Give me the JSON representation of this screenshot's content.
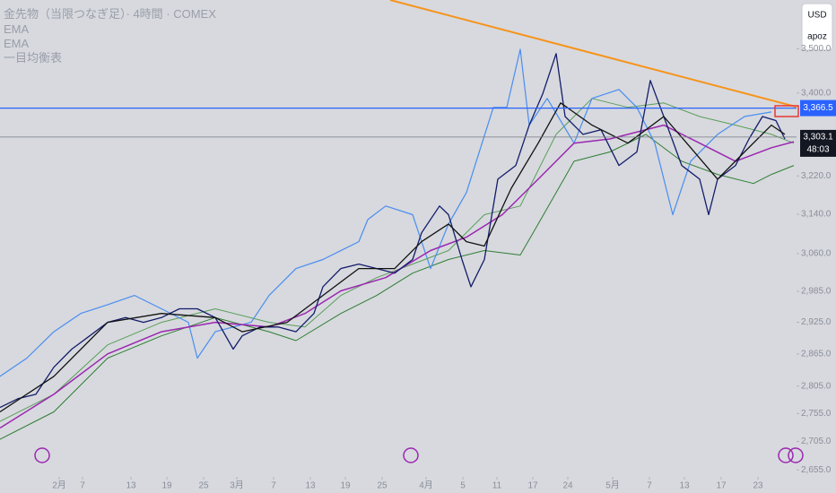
{
  "chart_data": {
    "type": "line",
    "title": "金先物（当限つなぎ足）· 4時間 · COMEX",
    "currency": "USD",
    "axis_mode": "apoz",
    "log_scale": true,
    "xlim": [
      0,
      222
    ],
    "xticks": [
      {
        "value": 16.5,
        "label": "2月"
      },
      {
        "value": 23,
        "label": "7"
      },
      {
        "value": 36.5,
        "label": "13"
      },
      {
        "value": 46.5,
        "label": "19"
      },
      {
        "value": 56.75,
        "label": "25"
      },
      {
        "value": 66,
        "label": "3月"
      },
      {
        "value": 76.25,
        "label": "7"
      },
      {
        "value": 86.5,
        "label": "13"
      },
      {
        "value": 96.25,
        "label": "19"
      },
      {
        "value": 106.5,
        "label": "25"
      },
      {
        "value": 118.75,
        "label": "4月"
      },
      {
        "value": 129,
        "label": "5"
      },
      {
        "value": 138.5,
        "label": "11"
      },
      {
        "value": 148.5,
        "label": "17"
      },
      {
        "value": 158.25,
        "label": "24"
      },
      {
        "value": 170.75,
        "label": "5月"
      },
      {
        "value": 181,
        "label": "7"
      },
      {
        "value": 190.75,
        "label": "13"
      },
      {
        "value": 201,
        "label": "17"
      },
      {
        "value": 211.25,
        "label": "23"
      }
    ],
    "ylim": [
      2615,
      3614
    ],
    "yticks": [
      {
        "value": 3500,
        "label": "3,500.0"
      },
      {
        "value": 3400,
        "label": "3,400.0"
      },
      {
        "value": 3220,
        "label": "3,220.0"
      },
      {
        "value": 3140,
        "label": "3,140.0"
      },
      {
        "value": 3060,
        "label": "3,060.0"
      },
      {
        "value": 2985,
        "label": "2,985.0"
      },
      {
        "value": 2925,
        "label": "2,925.0"
      },
      {
        "value": 2865,
        "label": "2,865.0"
      },
      {
        "value": 2805,
        "label": "2,805.0"
      },
      {
        "value": 2755,
        "label": "2,755.0"
      },
      {
        "value": 2705,
        "label": "2,705.0"
      },
      {
        "value": 2655,
        "label": "2,655.0"
      }
    ],
    "series": [
      {
        "color": "#131c6b",
        "x": [
          0,
          5,
          10,
          15,
          20,
          25,
          30,
          35,
          40,
          45,
          50,
          55,
          60,
          65,
          67.5,
          72.5,
          77.5,
          82.5,
          87.5,
          90,
          95,
          100,
          105,
          110,
          115,
          117.5,
          122.5,
          125,
          128.75,
          131.25,
          135,
          138.75,
          143.75,
          147.5,
          151.25,
          155,
          157.5,
          162.5,
          167.5,
          172.5,
          177.5,
          181.25,
          185,
          190,
          195,
          197.5,
          200,
          205,
          208.75,
          212.5,
          216.25,
          218.75
        ],
        "values": [
          2766,
          2782,
          2790,
          2840,
          2874,
          2899,
          2925,
          2934,
          2925,
          2934,
          2951,
          2951,
          2934,
          2874,
          2899,
          2916,
          2916,
          2907,
          2942,
          2994,
          3030,
          3039,
          3030,
          3021,
          3048,
          3102,
          3157,
          3139,
          3048,
          2994,
          3048,
          3213,
          3242,
          3329,
          3398,
          3489,
          3348,
          3309,
          3319,
          3242,
          3271,
          3428,
          3348,
          3242,
          3213,
          3139,
          3213,
          3242,
          3299,
          3348,
          3339,
          3299
        ]
      },
      {
        "name": "EMA",
        "color": "#111111",
        "x": [
          0,
          15,
          30,
          45,
          60,
          67.5,
          80,
          90,
          100,
          110,
          117.5,
          125,
          130,
          135,
          142.5,
          150,
          156.25,
          165,
          175,
          185,
          192.5,
          200,
          207.5,
          215,
          218.75
        ],
        "values": [
          2758,
          2823,
          2925,
          2942,
          2934,
          2907,
          2925,
          2977,
          3030,
          3030,
          3084,
          3120,
          3084,
          3075,
          3194,
          3290,
          3378,
          3329,
          3290,
          3348,
          3280,
          3213,
          3271,
          3329,
          3309
        ]
      },
      {
        "name": "EMA",
        "color": "#9c27b0",
        "x": [
          0,
          15,
          30,
          45,
          60,
          75,
          85,
          95,
          107.5,
          120,
          130,
          140,
          150,
          160,
          170,
          185,
          195,
          205,
          215,
          221.25
        ],
        "values": [
          2729,
          2790,
          2865,
          2907,
          2925,
          2916,
          2942,
          2986,
          3012,
          3066,
          3093,
          3139,
          3213,
          3290,
          3299,
          3329,
          3290,
          3251,
          3280,
          3293
        ]
      }
    ],
    "ichimoku": {
      "name": "一目均衡表",
      "lagging": {
        "color": "#4a8df0",
        "x": [
          0,
          7.5,
          15,
          22.5,
          30,
          37.5,
          45,
          52.5,
          55,
          60,
          70,
          75,
          82.5,
          90,
          100,
          102.5,
          107.5,
          115,
          120,
          125,
          130,
          137.5,
          141.25,
          145,
          147.5,
          152.5,
          160,
          165,
          172.5,
          177.5,
          182.5,
          187.5,
          192.5,
          200,
          207.5,
          215
        ],
        "values": [
          2823,
          2857,
          2907,
          2942,
          2959,
          2977,
          2951,
          2925,
          2857,
          2907,
          2925,
          2977,
          3030,
          3048,
          3084,
          3129,
          3157,
          3139,
          3030,
          3120,
          3185,
          3368,
          3368,
          3499,
          3329,
          3388,
          3290,
          3388,
          3408,
          3368,
          3290,
          3139,
          3251,
          3309,
          3348,
          3358
        ]
      },
      "span_a": {
        "color": "#5a9e5a",
        "x": [
          0,
          15,
          30,
          45,
          60,
          75,
          85,
          95,
          105,
          115,
          125,
          135,
          145,
          155,
          165,
          175,
          185,
          195,
          205,
          215,
          221.25
        ],
        "values": [
          2741,
          2790,
          2882,
          2925,
          2951,
          2925,
          2916,
          2977,
          3012,
          3039,
          3066,
          3139,
          3157,
          3309,
          3388,
          3368,
          3378,
          3348,
          3329,
          3309,
          3290
        ]
      },
      "span_b": {
        "color": "#2e7d32",
        "x": [
          0,
          15,
          30,
          45,
          60,
          75,
          82.5,
          95,
          105,
          115,
          125,
          135,
          145,
          150,
          160,
          170,
          180,
          190,
          200,
          210,
          215,
          221.25
        ],
        "values": [
          2709,
          2758,
          2857,
          2899,
          2934,
          2907,
          2890,
          2942,
          2977,
          3021,
          3048,
          3066,
          3057,
          3120,
          3251,
          3271,
          3309,
          3251,
          3223,
          3204,
          3223,
          3242
        ]
      }
    },
    "trendline": {
      "color": "#f7931a",
      "x": [
        108.75,
        222.5
      ],
      "values": [
        3614,
        3368
      ]
    },
    "hline": {
      "value": 3366.5,
      "label": "3,366.5",
      "color": "#2962ff"
    },
    "last": {
      "value": 3303.1,
      "label": "3,303.1",
      "countdown": "48:03",
      "color": "#787b86"
    }
  }
}
